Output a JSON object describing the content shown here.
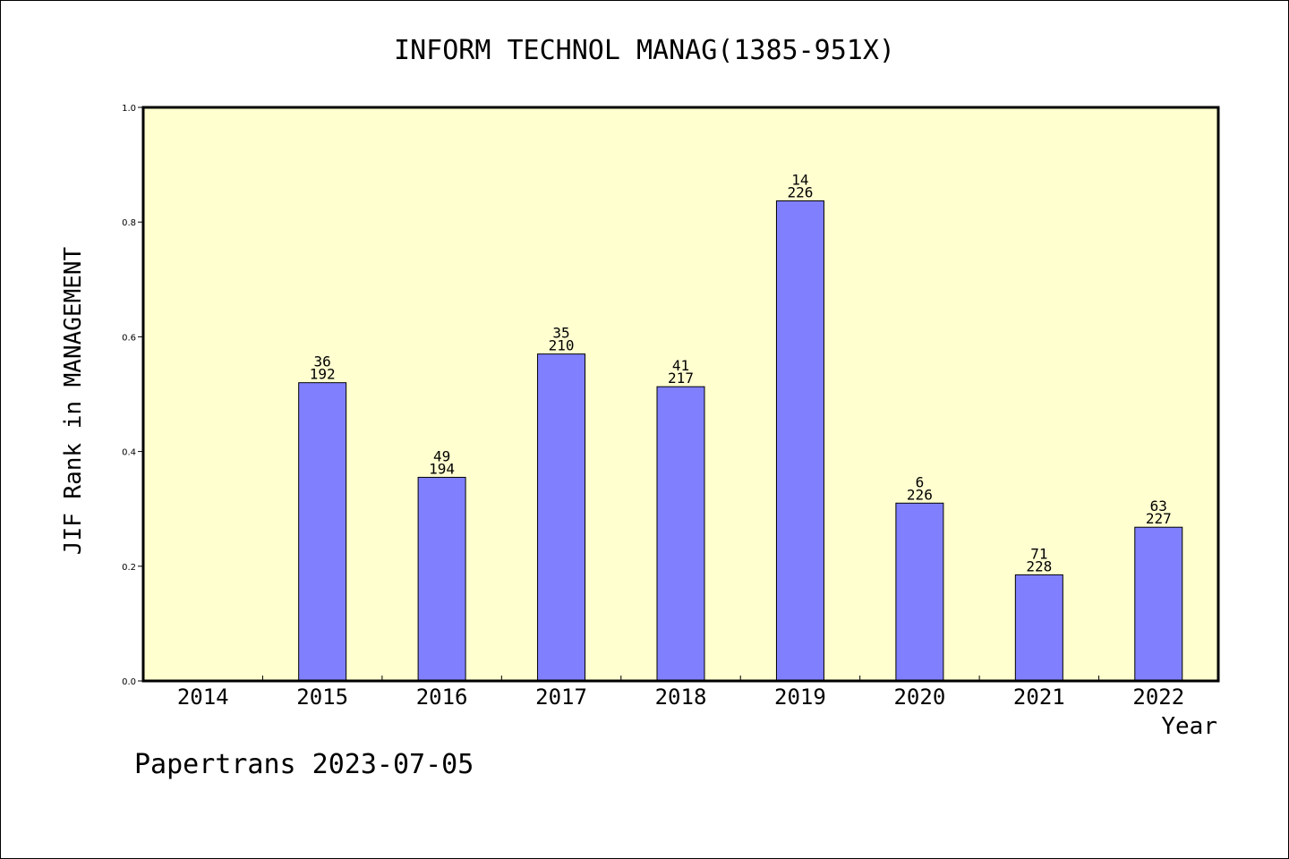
{
  "chart_data": {
    "type": "bar",
    "title": "INFORM TECHNOL MANAG(1385-951X)",
    "xlabel": "Year",
    "ylabel": "JIF Rank in MANAGEMENT",
    "ylim": [
      0,
      1.0
    ],
    "yticks": [
      "0.0",
      "0.2",
      "0.4",
      "0.6",
      "0.8",
      "1.0"
    ],
    "categories": [
      "2014",
      "2015",
      "2016",
      "2017",
      "2018",
      "2019",
      "2020",
      "2021",
      "2022"
    ],
    "values": [
      null,
      0.52,
      0.355,
      0.57,
      0.513,
      0.837,
      0.31,
      0.185,
      0.268
    ],
    "labels_top": [
      "",
      "36",
      "49",
      "35",
      "41",
      "14",
      "6",
      "71",
      "63"
    ],
    "labels_bottom": [
      "",
      "192",
      "194",
      "210",
      "217",
      "226",
      "226",
      "228",
      "227"
    ],
    "colors": {
      "bar": "#8080ff",
      "plot_bg": "#ffffd0"
    },
    "grid": false
  },
  "footer": "Papertrans 2023-07-05"
}
